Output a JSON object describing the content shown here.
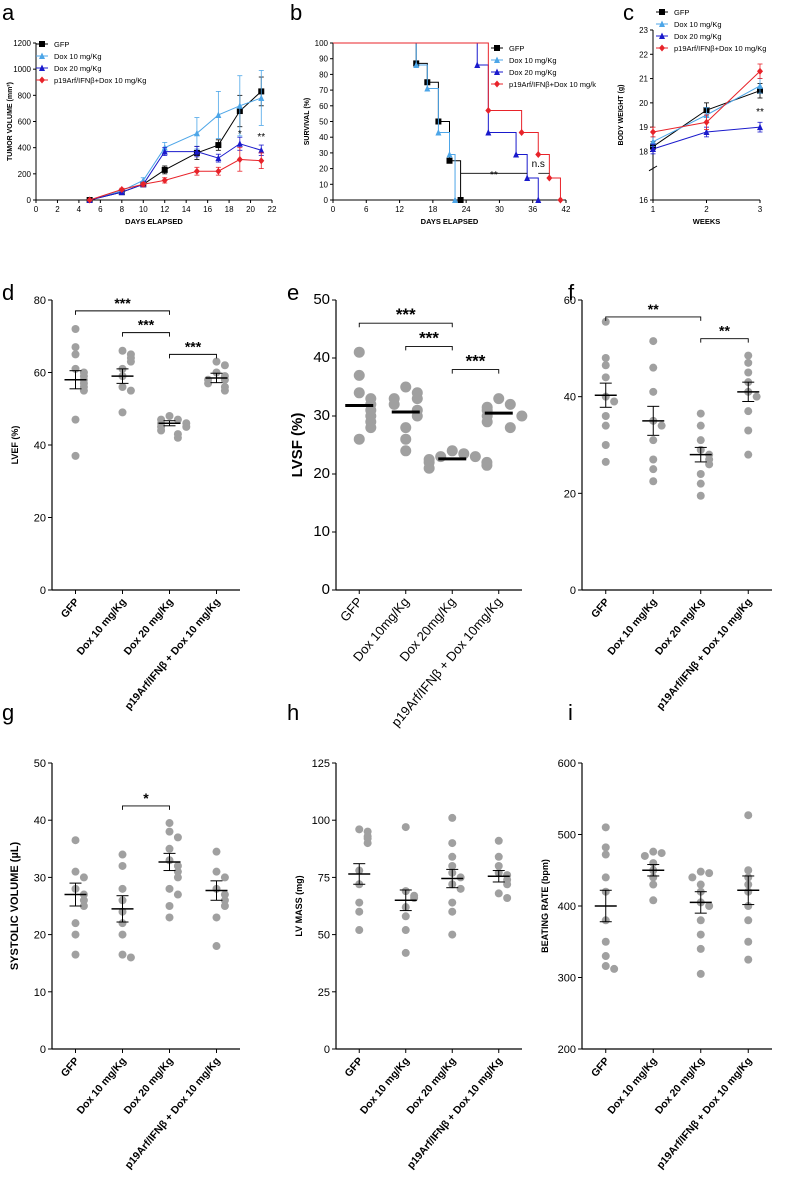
{
  "figure": {
    "colors": {
      "gfp": "#000000",
      "dox10": "#4da6e8",
      "dox20": "#1a1acc",
      "combo": "#e8232a",
      "dot": "#a0a0a0",
      "axis": "#000000"
    }
  },
  "chart_data": [
    {
      "panel": "a",
      "type": "line",
      "xlabel": "DAYS ELAPSED",
      "ylabel": "TUMOR VOLUME (mm³)",
      "xlim": [
        0,
        22
      ],
      "ylim": [
        0,
        1200
      ],
      "xticks": [
        0,
        2,
        4,
        6,
        8,
        10,
        12,
        14,
        16,
        18,
        20,
        22
      ],
      "yticks": [
        0,
        200,
        400,
        600,
        800,
        1000,
        1200
      ],
      "series": [
        {
          "name": "GFP",
          "color": "gfp",
          "marker": "square",
          "x": [
            5,
            8,
            10,
            12,
            15,
            17,
            19,
            21
          ],
          "y": [
            0,
            60,
            120,
            230,
            360,
            420,
            680,
            830
          ],
          "err": [
            0,
            10,
            15,
            30,
            50,
            40,
            120,
            110
          ]
        },
        {
          "name": "Dox 10 mg/Kg",
          "color": "dox10",
          "marker": "triangle",
          "x": [
            5,
            8,
            10,
            12,
            15,
            17,
            19,
            21
          ],
          "y": [
            0,
            70,
            150,
            400,
            510,
            650,
            720,
            780
          ],
          "err": [
            0,
            10,
            20,
            40,
            120,
            180,
            230,
            210
          ]
        },
        {
          "name": "Dox 20 mg/Kg",
          "color": "dox20",
          "marker": "triangle",
          "x": [
            5,
            8,
            10,
            12,
            15,
            17,
            19,
            21
          ],
          "y": [
            0,
            60,
            120,
            370,
            370,
            320,
            430,
            380
          ],
          "err": [
            0,
            10,
            15,
            30,
            40,
            30,
            50,
            40
          ]
        },
        {
          "name": "p19Arf/IFNβ+Dox 10 mg/Kg",
          "color": "combo",
          "marker": "diamond",
          "x": [
            5,
            8,
            10,
            12,
            15,
            17,
            19,
            21
          ],
          "y": [
            0,
            80,
            120,
            150,
            220,
            220,
            310,
            300
          ],
          "err": [
            0,
            10,
            15,
            20,
            30,
            30,
            90,
            60
          ]
        }
      ],
      "annotations": [
        {
          "text": "*",
          "x": 19,
          "y": 480
        },
        {
          "text": "**",
          "x": 21,
          "y": 460
        }
      ]
    },
    {
      "panel": "b",
      "type": "line",
      "xlabel": "DAYS ELAPSED",
      "ylabel": "SURVIVAL (%)",
      "xlim": [
        0,
        42
      ],
      "ylim": [
        0,
        100
      ],
      "xticks": [
        0,
        6,
        12,
        18,
        24,
        30,
        36,
        42
      ],
      "yticks": [
        0,
        10,
        20,
        30,
        40,
        50,
        60,
        70,
        80,
        90,
        100
      ],
      "series": [
        {
          "name": "GFP",
          "color": "gfp",
          "marker": "square",
          "x": [
            0,
            15,
            17,
            19,
            21,
            23
          ],
          "y": [
            100,
            87,
            75,
            50,
            25,
            0
          ]
        },
        {
          "name": "Dox 10 mg/Kg",
          "color": "dox10",
          "marker": "triangle",
          "x": [
            0,
            15,
            17,
            19,
            21,
            22
          ],
          "y": [
            100,
            86,
            71,
            43,
            29,
            0
          ]
        },
        {
          "name": "Dox 20 mg/Kg",
          "color": "dox20",
          "marker": "triangle",
          "x": [
            0,
            26,
            28,
            33,
            35,
            37
          ],
          "y": [
            100,
            86,
            43,
            29,
            14,
            0
          ]
        },
        {
          "name": "p19Arf/IFNβ+Dox 10 mg/k",
          "color": "combo",
          "marker": "diamond",
          "x": [
            0,
            28,
            34,
            37,
            39,
            41
          ],
          "y": [
            100,
            57,
            43,
            29,
            14,
            0
          ]
        }
      ],
      "annotations": [
        {
          "text": "**",
          "x": 29,
          "y": 14
        },
        {
          "text": "n.s",
          "x": 37,
          "y": 21
        }
      ]
    },
    {
      "panel": "c",
      "type": "line",
      "xlabel": "WEEKS",
      "ylabel": "BODY WEIGHT (g)",
      "xlim": [
        1,
        3
      ],
      "ylim": [
        16,
        23
      ],
      "xticks": [
        1,
        2,
        3
      ],
      "yticks": [
        16,
        18,
        19,
        20,
        21,
        22,
        23
      ],
      "series": [
        {
          "name": "GFP",
          "color": "gfp",
          "marker": "square",
          "x": [
            1,
            2,
            3
          ],
          "y": [
            18.2,
            19.7,
            20.5
          ],
          "err": [
            0.2,
            0.3,
            0.3
          ]
        },
        {
          "name": "Dox 10 mg/Kg",
          "color": "dox10",
          "marker": "triangle",
          "x": [
            1,
            2,
            3
          ],
          "y": [
            18.4,
            19.5,
            20.7
          ],
          "err": [
            0.2,
            0.3,
            0.3
          ]
        },
        {
          "name": "Dox 20 mg/Kg",
          "color": "dox20",
          "marker": "triangle",
          "x": [
            1,
            2,
            3
          ],
          "y": [
            18.1,
            18.8,
            19.0
          ],
          "err": [
            0.2,
            0.2,
            0.2
          ]
        },
        {
          "name": "p19Arf/IFNβ+Dox 10 mg/Kg",
          "color": "combo",
          "marker": "diamond",
          "x": [
            1,
            2,
            3
          ],
          "y": [
            18.8,
            19.2,
            21.3
          ],
          "err": [
            0.2,
            0.3,
            0.3
          ]
        }
      ],
      "annotations": [
        {
          "text": "**",
          "x": 3,
          "y": 19.5
        }
      ]
    },
    {
      "panel": "d",
      "type": "scatter",
      "ylabel": "LVEF (%)",
      "ylim": [
        0,
        80
      ],
      "yticks": [
        0,
        20,
        40,
        60,
        80
      ],
      "categories": [
        "GFP",
        "Dox 10 mg/Kg",
        "Dox 20 mg/Kg",
        "p19Arf/IFNβ + Dox 10 mg/Kg"
      ],
      "groups": [
        {
          "values": [
            72,
            67,
            65,
            61,
            60,
            59,
            58,
            57,
            56,
            55,
            47,
            37
          ],
          "mean": 58,
          "sem": 2.5
        },
        {
          "values": [
            66,
            65,
            64,
            63,
            61,
            59,
            56,
            55,
            49
          ],
          "mean": 59,
          "sem": 2
        },
        {
          "values": [
            48,
            47,
            47,
            46,
            46,
            45,
            45,
            44,
            43,
            42
          ],
          "mean": 46,
          "sem": 0.7
        },
        {
          "values": [
            63,
            62,
            60,
            59,
            58,
            58,
            57,
            56,
            55
          ],
          "mean": 58.5,
          "sem": 1.3
        }
      ],
      "brackets": [
        {
          "from": 0,
          "to": 2,
          "text": "***",
          "y": 77
        },
        {
          "from": 1,
          "to": 2,
          "text": "***",
          "y": 71
        },
        {
          "from": 2,
          "to": 3,
          "text": "***",
          "y": 65
        }
      ]
    },
    {
      "panel": "e",
      "type": "scatter",
      "ylabel": "LVSF (%)",
      "ylim": [
        0,
        50
      ],
      "yticks": [
        0,
        10,
        20,
        30,
        40,
        50
      ],
      "categories": [
        "GFP",
        "Dox 10mg/Kg",
        "Dox 20mg/Kg",
        "p19Arf/IFNβ + Dox 10mg/Kg"
      ],
      "groups": [
        {
          "values": [
            41,
            37,
            34,
            33,
            32,
            31,
            30,
            29,
            28,
            26
          ],
          "mean": 31.8,
          "sem": 0
        },
        {
          "values": [
            35,
            34,
            33,
            33,
            32,
            31,
            30,
            28,
            26,
            24
          ],
          "mean": 30.7,
          "sem": 0
        },
        {
          "values": [
            24,
            23.5,
            23,
            23,
            22.5,
            22,
            22,
            21.5,
            21
          ],
          "mean": 22.6,
          "sem": 0
        },
        {
          "values": [
            33,
            32,
            31.5,
            31,
            30,
            30,
            29,
            28
          ],
          "mean": 30.5,
          "sem": 0
        }
      ],
      "brackets": [
        {
          "from": 0,
          "to": 2,
          "text": "***",
          "y": 46
        },
        {
          "from": 1,
          "to": 2,
          "text": "***",
          "y": 42
        },
        {
          "from": 2,
          "to": 3,
          "text": "***",
          "y": 38
        }
      ]
    },
    {
      "panel": "f",
      "type": "scatter",
      "ylabel": "",
      "ylim": [
        0,
        60
      ],
      "yticks": [
        0,
        20,
        40,
        60
      ],
      "categories": [
        "GFP",
        "Dox 10 mg/Kg",
        "Dox 20 mg/Kg",
        "p19Arf/IFNβ + Dox 10 mg/Kg"
      ],
      "groups": [
        {
          "values": [
            55.5,
            48,
            46.5,
            44,
            40,
            39,
            36,
            34,
            30,
            26.5
          ],
          "mean": 40.3,
          "sem": 2.5
        },
        {
          "values": [
            51.5,
            46,
            41,
            35,
            34,
            31,
            27,
            25,
            22.5
          ],
          "mean": 35,
          "sem": 3
        },
        {
          "values": [
            36.5,
            34,
            31,
            29,
            28,
            27,
            26,
            24,
            22,
            19.5
          ],
          "mean": 28,
          "sem": 1.5
        },
        {
          "values": [
            48.5,
            47,
            45,
            43,
            41,
            40,
            37,
            33,
            28
          ],
          "mean": 41,
          "sem": 2
        }
      ],
      "brackets": [
        {
          "from": 0,
          "to": 2,
          "text": "**",
          "y": 56.5
        },
        {
          "from": 2,
          "to": 3,
          "text": "**",
          "y": 52
        }
      ]
    },
    {
      "panel": "g",
      "type": "scatter",
      "ylabel": "SYSTOLIC VOLUME (µL)",
      "ylim": [
        0,
        50
      ],
      "yticks": [
        0,
        10,
        20,
        30,
        40,
        50
      ],
      "categories": [
        "GFP",
        "Dox 10 mg/Kg",
        "Dox 20 mg/Kg",
        "p19Arf/IFNβ + Dox 10 mg/Kg"
      ],
      "groups": [
        {
          "values": [
            36.5,
            31,
            30,
            28,
            27,
            26,
            25,
            22,
            20,
            16.5
          ],
          "mean": 27,
          "sem": 2
        },
        {
          "values": [
            34,
            32,
            28,
            26,
            24,
            22,
            20,
            16.5,
            16
          ],
          "mean": 24.5,
          "sem": 2.3
        },
        {
          "values": [
            39.5,
            38,
            37,
            35,
            33,
            32,
            31,
            30,
            28,
            27,
            25,
            23
          ],
          "mean": 32.7,
          "sem": 1.5
        },
        {
          "values": [
            34.5,
            31,
            30,
            28,
            27,
            26,
            25,
            23,
            18
          ],
          "mean": 27.7,
          "sem": 1.7
        }
      ],
      "brackets": [
        {
          "from": 1,
          "to": 2,
          "text": "*",
          "y": 42.5
        }
      ]
    },
    {
      "panel": "h",
      "type": "scatter",
      "ylabel": "LV MASS (mg)",
      "ylim": [
        0,
        125
      ],
      "yticks": [
        0,
        25,
        50,
        75,
        100,
        125
      ],
      "categories": [
        "GFP",
        "Dox 10 mg/Kg",
        "Dox 20 mg/Kg",
        "p19Arf/IFNβ + Dox 10 mg/Kg"
      ],
      "groups": [
        {
          "values": [
            96,
            95,
            93,
            92,
            90,
            78,
            72,
            64,
            60,
            52
          ],
          "mean": 76.5,
          "sem": 4.5
        },
        {
          "values": [
            97,
            69,
            67,
            66,
            62,
            58,
            52,
            42
          ],
          "mean": 65,
          "sem": 4.5
        },
        {
          "values": [
            101,
            90,
            84,
            80,
            77,
            75,
            72,
            70,
            64,
            60,
            50
          ],
          "mean": 74.5,
          "sem": 4
        },
        {
          "values": [
            91,
            84,
            80,
            77,
            76,
            74,
            72,
            68,
            66
          ],
          "mean": 75.5,
          "sem": 2.5
        }
      ],
      "brackets": []
    },
    {
      "panel": "i",
      "type": "scatter",
      "ylabel": "BEATING RATE (bpm)",
      "ylim": [
        200,
        600
      ],
      "yticks": [
        200,
        300,
        400,
        500,
        600
      ],
      "categories": [
        "GFP",
        "Dox 10 mg/Kg",
        "Dox 20 mg/Kg",
        "p19Arf/IFNβ + Dox 10 mg/Kg"
      ],
      "groups": [
        {
          "values": [
            510,
            482,
            472,
            440,
            420,
            380,
            350,
            330,
            316,
            312
          ],
          "mean": 400,
          "sem": 22
        },
        {
          "values": [
            476,
            474,
            470,
            460,
            450,
            440,
            430,
            408
          ],
          "mean": 450,
          "sem": 8
        },
        {
          "values": [
            448,
            446,
            440,
            430,
            420,
            405,
            400,
            380,
            360,
            340,
            305
          ],
          "mean": 405,
          "sem": 15
        },
        {
          "values": [
            527,
            450,
            440,
            430,
            420,
            400,
            380,
            350,
            325
          ],
          "mean": 422,
          "sem": 20
        }
      ],
      "brackets": []
    }
  ]
}
